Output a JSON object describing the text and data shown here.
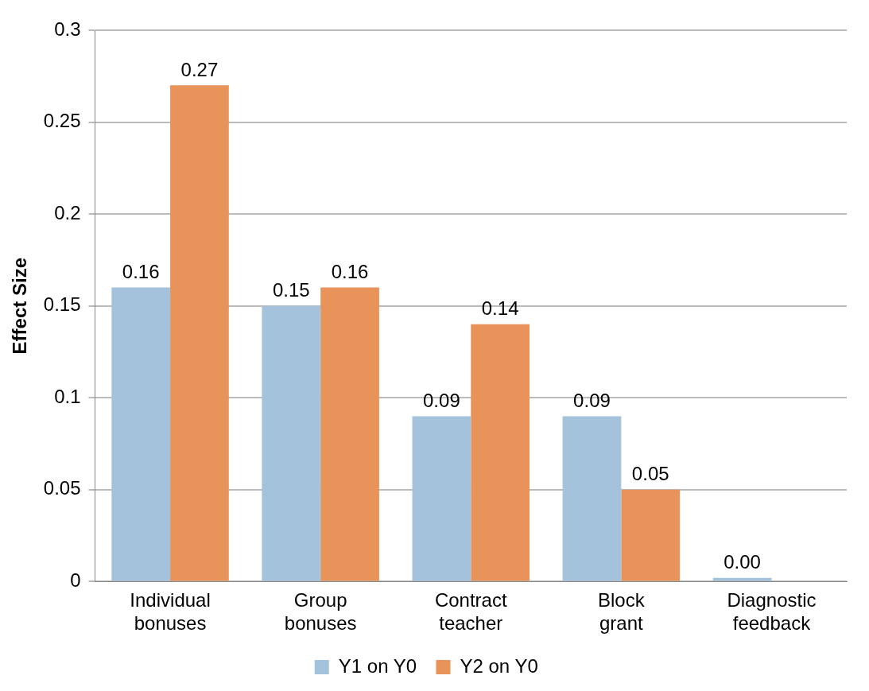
{
  "chart_data": {
    "type": "bar",
    "ylabel": "Effect Size",
    "categories": [
      "Individual bonuses",
      "Group bonuses",
      "Contract teacher",
      "Block grant",
      "Diagnostic feedback"
    ],
    "series": [
      {
        "name": "Y1 on Y0",
        "color": "#a4c2dc",
        "values": [
          0.16,
          0.15,
          0.09,
          0.09,
          0.002
        ],
        "value_labels": [
          "0.16",
          "0.15",
          "0.09",
          "0.09",
          "0.00"
        ]
      },
      {
        "name": "Y2 on Y0",
        "color": "#e8935a",
        "values": [
          0.27,
          0.16,
          0.14,
          0.05,
          null
        ],
        "value_labels": [
          "0.27",
          "0.16",
          "0.14",
          "0.05",
          null
        ]
      }
    ],
    "ylim": [
      0,
      0.3
    ],
    "yticks": [
      0,
      0.05,
      0.1,
      0.15,
      0.2,
      0.25,
      0.3
    ],
    "grid": "y",
    "legend": "bottom"
  }
}
